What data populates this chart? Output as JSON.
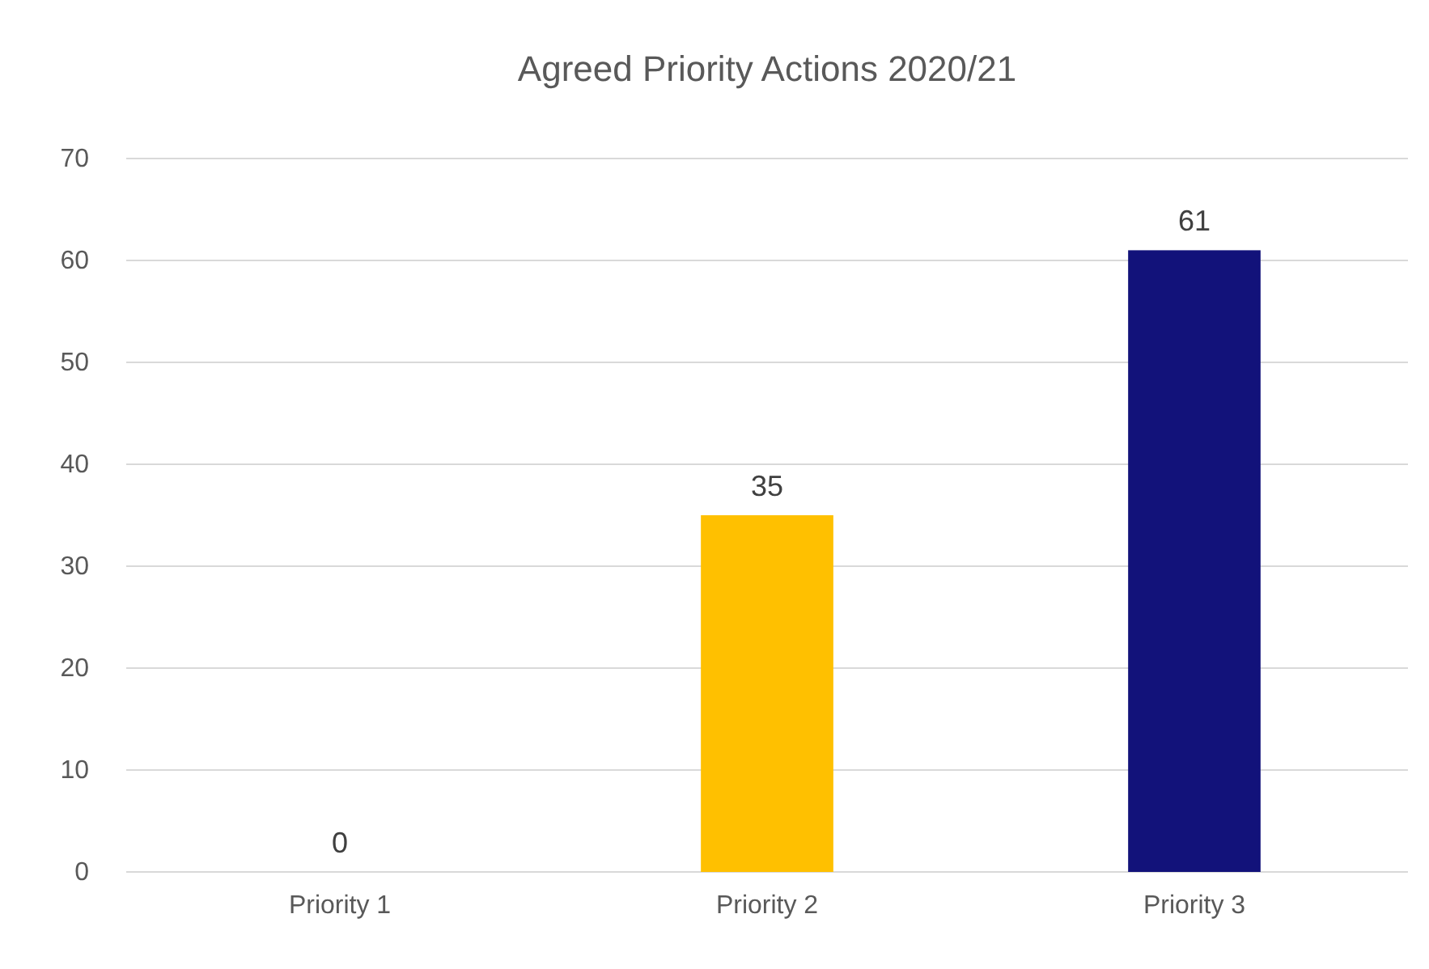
{
  "chart_data": {
    "type": "bar",
    "title": "Agreed Priority Actions 2020/21",
    "categories": [
      "Priority 1",
      "Priority 2",
      "Priority 3"
    ],
    "values": [
      0,
      35,
      61
    ],
    "colors": [
      "#4472c4",
      "#ffc000",
      "#12127a"
    ],
    "ylim": [
      0,
      70
    ],
    "yticks": [
      0,
      10,
      20,
      30,
      40,
      50,
      60,
      70
    ],
    "grid": "y",
    "data_labels": true
  }
}
